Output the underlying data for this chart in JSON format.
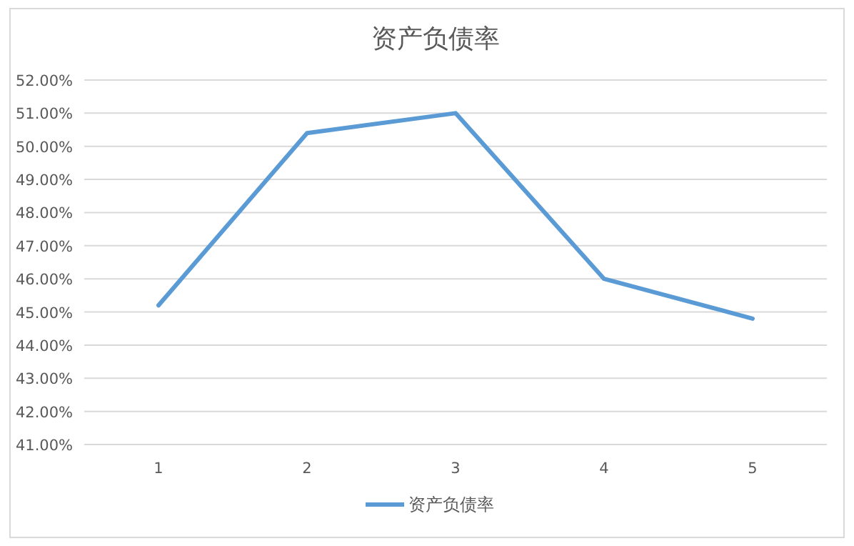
{
  "chart_data": {
    "type": "line",
    "title": "资产负债率",
    "categories": [
      "1",
      "2",
      "3",
      "4",
      "5"
    ],
    "series": [
      {
        "name": "资产负债率",
        "color": "#5b9bd5",
        "values": [
          45.2,
          50.4,
          51.0,
          46.0,
          44.8
        ]
      }
    ],
    "ylim": [
      41,
      52
    ],
    "yticks": [
      {
        "value": 41,
        "label": "41.00%"
      },
      {
        "value": 42,
        "label": "42.00%"
      },
      {
        "value": 43,
        "label": "43.00%"
      },
      {
        "value": 44,
        "label": "44.00%"
      },
      {
        "value": 45,
        "label": "45.00%"
      },
      {
        "value": 46,
        "label": "46.00%"
      },
      {
        "value": 47,
        "label": "47.00%"
      },
      {
        "value": 48,
        "label": "48.00%"
      },
      {
        "value": 49,
        "label": "49.00%"
      },
      {
        "value": 50,
        "label": "50.00%"
      },
      {
        "value": 51,
        "label": "51.00%"
      },
      {
        "value": 52,
        "label": "52.00%"
      }
    ],
    "grid": "y",
    "legend": "bottom",
    "marker": "none",
    "line_style": "solid"
  }
}
